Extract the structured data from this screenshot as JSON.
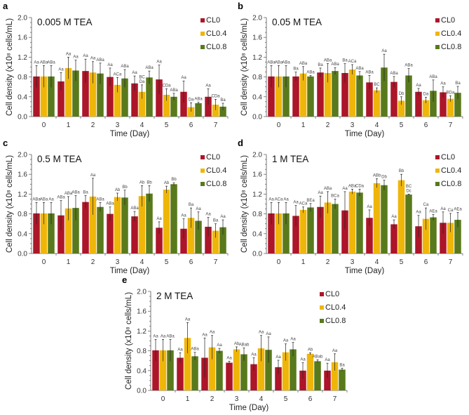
{
  "colors": {
    "CL0": "#ad1529",
    "CL0.4": "#efb60a",
    "CL0.8": "#587a1c"
  },
  "shared": {
    "ylabel": "Cell density (x10⁸ cells/mL)",
    "xlabel": "Time (Day)",
    "yticks": [
      "0.0",
      "0.4",
      "0.8",
      "1.2",
      "1.6",
      "2.0"
    ],
    "categories": [
      "0",
      "1",
      "2",
      "3",
      "4",
      "5",
      "6",
      "7"
    ],
    "legend": [
      "CL0",
      "CL0.4",
      "CL0.8"
    ]
  },
  "chart_data": [
    {
      "type": "bar",
      "panel": "a",
      "title": "0.005 M TEA",
      "xlabel": "Time (Day)",
      "ylabel": "Cell density (x10⁸ cells/mL)",
      "ylim": [
        0,
        2.0
      ],
      "categories": [
        "0",
        "1",
        "2",
        "3",
        "4",
        "5",
        "6",
        "7"
      ],
      "series": [
        {
          "name": "CL0",
          "values": [
            0.81,
            0.71,
            0.92,
            0.8,
            0.67,
            0.75,
            0.5,
            0.4
          ],
          "errors": [
            0.22,
            0.18,
            0.24,
            0.18,
            0.15,
            0.29,
            0.22,
            0.16
          ],
          "labels": [
            "Aa",
            "Aa",
            "Aa",
            "Aa",
            "Aa",
            "Aa",
            "Aa",
            "Aa"
          ]
        },
        {
          "name": "CL0.4",
          "values": [
            0.81,
            0.98,
            0.89,
            0.64,
            0.5,
            0.44,
            0.19,
            0.24
          ],
          "errors": [
            0.22,
            0.22,
            0.22,
            0.15,
            0.14,
            0.12,
            0.09,
            0.11
          ],
          "labels": [
            "ABa",
            "Aa",
            "Aa",
            "ACa",
            "BC Da",
            "CDa",
            "Da",
            "CDa"
          ]
        },
        {
          "name": "CL0.8",
          "values": [
            0.81,
            0.93,
            0.87,
            0.77,
            0.79,
            0.4,
            0.27,
            0.2
          ],
          "errors": [
            0.22,
            0.21,
            0.21,
            0.18,
            0.13,
            0.07,
            0.02,
            0.07
          ],
          "labels": [
            "ABa",
            "Aa",
            "ABa",
            "ABa",
            "ABa",
            "ABa",
            "ABa",
            "Ba"
          ]
        }
      ]
    },
    {
      "type": "bar",
      "panel": "b",
      "title": "0.05 M TEA",
      "xlabel": "Time (Day)",
      "ylabel": "Cell density (x10⁸ cells/mL)",
      "ylim": [
        0,
        2.0
      ],
      "categories": [
        "0",
        "1",
        "2",
        "3",
        "4",
        "5",
        "6",
        "7"
      ],
      "series": [
        {
          "name": "CL0",
          "values": [
            0.81,
            0.81,
            0.89,
            0.88,
            0.69,
            0.7,
            0.5,
            0.49
          ],
          "errors": [
            0.22,
            0.09,
            0.09,
            0.19,
            0.14,
            0.11,
            0.07,
            0.11
          ],
          "labels": [
            "ABa",
            "Ba",
            "Ba",
            "Ba",
            "ABa",
            "ABa",
            "Aa",
            "Aa"
          ]
        },
        {
          "name": "CL0.4",
          "values": [
            0.81,
            0.87,
            0.88,
            0.95,
            0.53,
            0.32,
            0.33,
            0.36
          ],
          "errors": [
            0.22,
            0.14,
            0.19,
            0.1,
            0.05,
            0.08,
            0.06,
            0.06
          ],
          "labels": [
            "ABa",
            "ABa",
            "ABa",
            "ACa",
            "BC",
            "Db",
            "Da",
            "BDa"
          ]
        },
        {
          "name": "CL0.8",
          "values": [
            0.81,
            0.81,
            0.92,
            0.83,
            0.99,
            0.83,
            0.52,
            0.48
          ],
          "errors": [
            0.22,
            0.02,
            0.07,
            0.08,
            0.27,
            0.14,
            0.22,
            0.13
          ],
          "labels": [
            "ABa",
            "ABa",
            "ABa",
            "ABa",
            "Aa",
            "ABa",
            "ABa",
            "Ba"
          ]
        }
      ]
    },
    {
      "type": "bar",
      "panel": "c",
      "title": "0.5 M TEA",
      "xlabel": "Time (Day)",
      "ylabel": "Cell density (x10⁸ cells/mL)",
      "ylim": [
        0,
        2.0
      ],
      "categories": [
        "0",
        "1",
        "2",
        "3",
        "4",
        "5",
        "6",
        "7"
      ],
      "series": [
        {
          "name": "CL0",
          "values": [
            0.81,
            0.77,
            1.04,
            0.8,
            0.75,
            0.52,
            0.5,
            0.54
          ],
          "errors": [
            0.22,
            0.3,
            0.13,
            0.14,
            0.1,
            0.12,
            0.2,
            0.19
          ],
          "labels": [
            "ABa",
            "ABa",
            "Ba",
            "ABa",
            "ABa",
            "Aa",
            "Aa",
            "Aa"
          ]
        },
        {
          "name": "CL0.4",
          "values": [
            0.81,
            0.91,
            1.15,
            1.14,
            1.16,
            1.29,
            0.72,
            0.46
          ],
          "errors": [
            0.22,
            0.24,
            0.37,
            0.08,
            0.21,
            0.07,
            0.2,
            0.14
          ],
          "labels": [
            "ABa",
            "ABa",
            "Aa",
            "Ab",
            "Ab",
            "Ab",
            "Ba",
            "Ba"
          ]
        },
        {
          "name": "CL0.8",
          "values": [
            0.81,
            0.92,
            0.94,
            1.13,
            1.21,
            1.4,
            0.66,
            0.53
          ],
          "errors": [
            0.22,
            0.25,
            0.09,
            0.15,
            0.16,
            0.03,
            0.18,
            0.15
          ],
          "labels": [
            "Aa",
            "ABa",
            "ABa",
            "Bb",
            "Bb",
            "Bb",
            "Aa",
            "Aa"
          ]
        }
      ]
    },
    {
      "type": "bar",
      "panel": "d",
      "title": "1 M TEA",
      "xlabel": "Time (Day)",
      "ylabel": "Cell density (x10⁸ cells/mL)",
      "ylim": [
        0,
        2.0
      ],
      "categories": [
        "0",
        "1",
        "2",
        "3",
        "4",
        "5",
        "6",
        "7"
      ],
      "series": [
        {
          "name": "CL0",
          "values": [
            0.81,
            0.76,
            0.94,
            0.87,
            0.72,
            0.59,
            0.55,
            0.62
          ],
          "errors": [
            0.22,
            0.21,
            0.22,
            0.38,
            0.16,
            0.09,
            0.22,
            0.22
          ],
          "labels": [
            "Aa",
            "Aa",
            "Aa",
            "Aa",
            "Aa",
            "Aa",
            "Aa",
            "Aa"
          ]
        },
        {
          "name": "CL0.4",
          "values": [
            0.81,
            0.88,
            1.03,
            1.25,
            1.42,
            1.48,
            0.7,
            0.62
          ],
          "errors": [
            0.22,
            0.06,
            0.22,
            0.05,
            0.09,
            0.12,
            0.22,
            0.19
          ],
          "labels": [
            "ACa",
            "ACa",
            "ABa",
            "ABa",
            "ABb",
            "Bb",
            "Ca",
            "Ca"
          ]
        },
        {
          "name": "CL0.8",
          "values": [
            0.81,
            0.93,
            1.0,
            1.23,
            1.38,
            1.19,
            0.73,
            0.68
          ],
          "errors": [
            0.22,
            0.08,
            0.1,
            0.07,
            0.1,
            0.01,
            0.06,
            0.15
          ],
          "labels": [
            "Aa",
            "BEa",
            "BCa",
            "CDa",
            "Db",
            "BC Dc",
            "AEa",
            "AEa"
          ]
        }
      ]
    },
    {
      "type": "bar",
      "panel": "e",
      "title": "2 M TEA",
      "xlabel": "Time (Day)",
      "ylabel": "Cell density (x10⁸ cells/mL)",
      "ylim": [
        0,
        2.0
      ],
      "categories": [
        "0",
        "1",
        "2",
        "3",
        "4",
        "5",
        "6",
        "7"
      ],
      "series": [
        {
          "name": "CL0",
          "values": [
            0.81,
            0.66,
            0.66,
            0.56,
            0.53,
            0.47,
            0.4,
            0.4
          ],
          "errors": [
            0.22,
            0.1,
            0.4,
            0.03,
            0.13,
            0.14,
            0.16,
            0.15
          ],
          "labels": [
            "Aa",
            "Aa",
            "Aa",
            "Aa",
            "Aa",
            "Aa",
            "Aa",
            "Aa"
          ]
        },
        {
          "name": "CL0.4",
          "values": [
            0.81,
            1.06,
            0.87,
            0.83,
            0.85,
            0.77,
            0.74,
            0.57
          ],
          "errors": [
            0.22,
            0.31,
            0.24,
            0.05,
            0.26,
            0.17,
            0.02,
            0.17
          ],
          "labels": [
            "Aa",
            "Aa",
            "Aa",
            "Ab",
            "Aa",
            "Aa",
            "Ab",
            "Aa"
          ]
        },
        {
          "name": "CL0.8",
          "values": [
            0.81,
            0.69,
            0.8,
            0.73,
            0.82,
            0.83,
            0.59,
            0.42
          ],
          "errors": [
            0.22,
            0.08,
            0.05,
            0.13,
            0.26,
            0.14,
            0.03,
            0.03
          ],
          "labels": [
            "ABa",
            "ABa",
            "Aa",
            "ABab",
            "Aa",
            "Aa",
            "ABab",
            "Ba"
          ]
        }
      ]
    }
  ]
}
